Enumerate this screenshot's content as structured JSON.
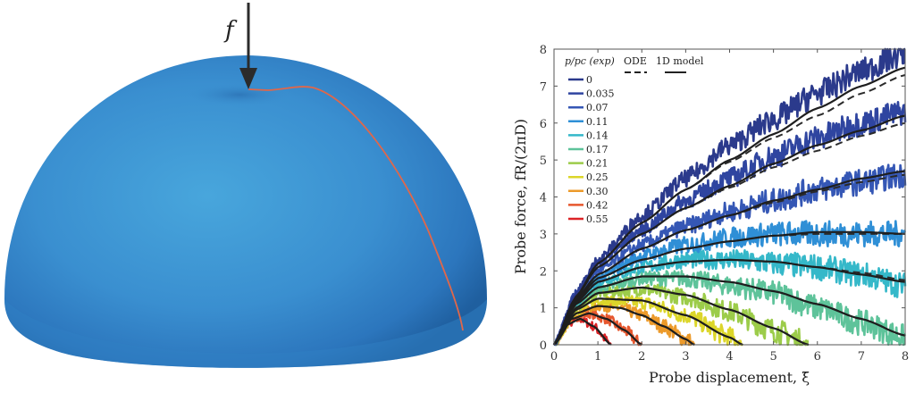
{
  "dome": {
    "force_label": "f",
    "surface_color": "#3a8fd0",
    "path_color": "#e0674a",
    "arrow_color": "#2b2b2b"
  },
  "chart_data": {
    "type": "line",
    "title": "",
    "xlabel": "Probe displacement, ξ̄",
    "ylabel": "Probe force, fR/(2πD)",
    "xlim": [
      0,
      8
    ],
    "ylim": [
      0,
      8
    ],
    "xticks": [
      0,
      1,
      2,
      3,
      4,
      5,
      6,
      7,
      8
    ],
    "yticks": [
      0,
      1,
      2,
      3,
      4,
      5,
      6,
      7,
      8
    ],
    "grid": false,
    "legend": {
      "position": "upper-left",
      "header": "p/pc (exp)",
      "ode_label": "ODE",
      "model_label": "1D model",
      "entries": [
        {
          "label": "0",
          "color": "#2b3a8c"
        },
        {
          "label": "0.035",
          "color": "#2f45a0"
        },
        {
          "label": "0.07",
          "color": "#3557b5"
        },
        {
          "label": "0.11",
          "color": "#2f8fd6"
        },
        {
          "label": "0.14",
          "color": "#35b8c9"
        },
        {
          "label": "0.17",
          "color": "#5ec39a"
        },
        {
          "label": "0.21",
          "color": "#9ccc4a"
        },
        {
          "label": "0.25",
          "color": "#dcd62a"
        },
        {
          "label": "0.30",
          "color": "#ec9a2a"
        },
        {
          "label": "0.42",
          "color": "#e6572e"
        },
        {
          "label": "0.55",
          "color": "#dc2327"
        }
      ]
    },
    "series": [
      {
        "name": "0",
        "x": [
          0,
          0.5,
          1,
          2,
          3,
          4,
          5,
          6,
          7,
          8
        ],
        "model": [
          0,
          1.3,
          2.2,
          3.3,
          4.2,
          5.0,
          5.7,
          6.4,
          7.0,
          7.5
        ],
        "ode": [
          0,
          1.3,
          2.2,
          3.3,
          4.2,
          4.95,
          5.6,
          6.2,
          6.8,
          7.3
        ],
        "exp_mean": [
          0,
          1.4,
          2.3,
          3.5,
          4.5,
          5.4,
          6.1,
          6.8,
          7.4,
          7.9
        ]
      },
      {
        "name": "0.035",
        "x": [
          0,
          0.5,
          1,
          2,
          3,
          4,
          5,
          6,
          7,
          8
        ],
        "model": [
          0,
          1.3,
          2.1,
          3.0,
          3.7,
          4.3,
          4.9,
          5.4,
          5.8,
          6.2
        ],
        "ode": [
          0,
          1.3,
          2.1,
          3.0,
          3.7,
          4.25,
          4.8,
          5.25,
          5.65,
          6.0
        ],
        "exp_mean": [
          0,
          1.4,
          2.2,
          3.1,
          3.9,
          4.5,
          5.1,
          5.6,
          6.0,
          6.3
        ]
      },
      {
        "name": "0.07",
        "x": [
          0,
          0.5,
          1,
          2,
          3,
          4,
          5,
          6,
          7,
          8
        ],
        "model": [
          0,
          1.25,
          1.9,
          2.6,
          3.1,
          3.5,
          3.9,
          4.2,
          4.5,
          4.7
        ],
        "ode": [
          0,
          1.25,
          1.9,
          2.6,
          3.1,
          3.5,
          3.85,
          4.15,
          4.4,
          4.6
        ],
        "exp_mean": [
          0,
          1.3,
          2.0,
          2.7,
          3.2,
          3.6,
          3.9,
          4.2,
          4.4,
          4.6
        ]
      },
      {
        "name": "0.11",
        "x": [
          0,
          0.5,
          1,
          2,
          3,
          4,
          5,
          6,
          7,
          8
        ],
        "model": [
          0,
          1.2,
          1.8,
          2.3,
          2.6,
          2.8,
          2.95,
          3.05,
          3.05,
          3.0
        ],
        "ode": [
          0,
          1.2,
          1.8,
          2.3,
          2.6,
          2.8,
          2.95,
          3.0,
          3.0,
          3.0
        ],
        "exp_mean": [
          0,
          1.2,
          1.8,
          2.4,
          2.7,
          2.9,
          3.0,
          3.0,
          3.0,
          3.0
        ]
      },
      {
        "name": "0.14",
        "x": [
          0,
          0.5,
          1,
          2,
          3,
          4,
          5,
          6,
          7,
          8
        ],
        "model": [
          0,
          1.15,
          1.7,
          2.1,
          2.25,
          2.3,
          2.25,
          2.1,
          1.9,
          1.7
        ],
        "ode": [
          0,
          1.15,
          1.7,
          2.1,
          2.25,
          2.3,
          2.25,
          2.1,
          1.95,
          1.75
        ],
        "exp_mean": [
          0,
          1.1,
          1.7,
          2.1,
          2.3,
          2.3,
          2.2,
          2.1,
          1.9,
          1.6
        ]
      },
      {
        "name": "0.17",
        "x": [
          0,
          0.5,
          1,
          2,
          3,
          4,
          5,
          6,
          7,
          8
        ],
        "model": [
          0,
          1.1,
          1.55,
          1.85,
          1.85,
          1.7,
          1.45,
          1.1,
          0.7,
          0.25
        ],
        "ode": [
          0,
          1.1,
          1.55,
          1.85,
          1.85,
          1.7,
          1.45,
          1.1,
          0.7,
          0.25
        ],
        "exp_mean": [
          0,
          1.1,
          1.5,
          1.8,
          1.8,
          1.6,
          1.4,
          1.0,
          0.6,
          0.2
        ]
      },
      {
        "name": "0.21",
        "x": [
          0,
          0.5,
          1,
          2,
          3,
          4,
          5,
          5.8
        ],
        "model": [
          0,
          1.0,
          1.4,
          1.55,
          1.35,
          0.95,
          0.45,
          0
        ],
        "ode": [
          0,
          1.0,
          1.4,
          1.55,
          1.35,
          0.95,
          0.45,
          0
        ],
        "exp_mean": [
          0,
          1.0,
          1.4,
          1.5,
          1.3,
          0.9,
          0.4,
          0
        ]
      },
      {
        "name": "0.25",
        "x": [
          0,
          0.5,
          1,
          2,
          3,
          4,
          4.3
        ],
        "model": [
          0,
          0.95,
          1.25,
          1.2,
          0.8,
          0.2,
          0
        ],
        "ode": [
          0,
          0.95,
          1.25,
          1.2,
          0.8,
          0.2,
          0
        ],
        "exp_mean": [
          0,
          0.9,
          1.2,
          1.15,
          0.8,
          0.2,
          0
        ]
      },
      {
        "name": "0.30",
        "x": [
          0,
          0.5,
          1,
          1.5,
          2,
          2.5,
          3,
          3.2
        ],
        "model": [
          0,
          0.85,
          1.05,
          1.0,
          0.8,
          0.5,
          0.15,
          0
        ],
        "ode": [
          0,
          0.85,
          1.05,
          1.0,
          0.8,
          0.5,
          0.15,
          0
        ],
        "exp_mean": [
          0,
          0.85,
          1.05,
          1.0,
          0.8,
          0.5,
          0.15,
          0
        ]
      },
      {
        "name": "0.42",
        "x": [
          0,
          0.4,
          0.8,
          1.2,
          1.6,
          2.0
        ],
        "model": [
          0,
          0.7,
          0.85,
          0.7,
          0.4,
          0
        ],
        "ode": [
          0,
          0.7,
          0.85,
          0.7,
          0.4,
          0
        ],
        "exp_mean": [
          0,
          0.7,
          0.85,
          0.7,
          0.4,
          0
        ]
      },
      {
        "name": "0.55",
        "x": [
          0,
          0.3,
          0.6,
          0.9,
          1.3
        ],
        "model": [
          0,
          0.55,
          0.7,
          0.5,
          0
        ],
        "ode": [
          0,
          0.55,
          0.7,
          0.5,
          0
        ],
        "exp_mean": [
          0,
          0.55,
          0.7,
          0.5,
          0
        ]
      }
    ]
  }
}
